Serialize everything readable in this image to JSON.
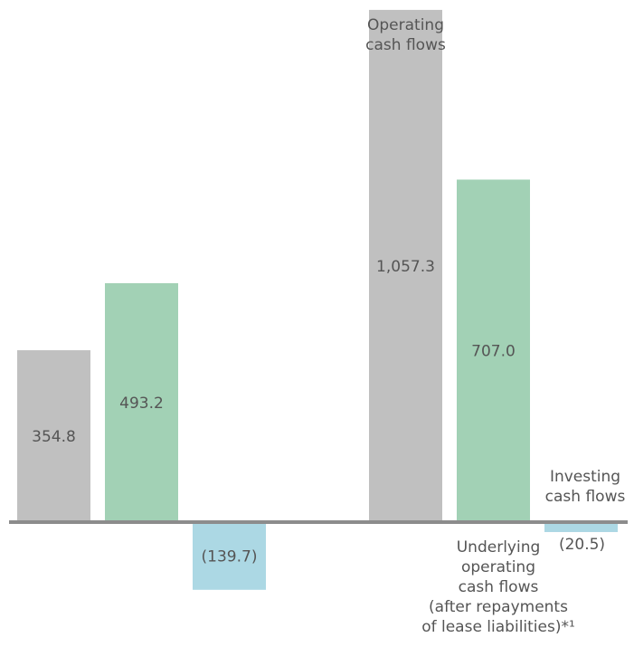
{
  "chart_data": {
    "type": "bar",
    "title": "",
    "xlabel": "",
    "ylabel": "",
    "ylim": [
      -150,
      1100
    ],
    "grid": false,
    "legend": "none",
    "groups": [
      {
        "bars": [
          {
            "series": "operating",
            "value": 354.8,
            "label": "354.8"
          },
          {
            "series": "underlying",
            "value": 493.2,
            "label": "493.2"
          },
          {
            "series": "investing",
            "value": -139.7,
            "label": "(139.7)"
          }
        ]
      },
      {
        "bars": [
          {
            "series": "operating",
            "value": 1057.3,
            "label": "1,057.3"
          },
          {
            "series": "underlying",
            "value": 707.0,
            "label": "707.0"
          },
          {
            "series": "investing",
            "value": -20.5,
            "label": "(20.5)"
          }
        ]
      }
    ],
    "annotations": [
      {
        "series": "operating",
        "lines": [
          "Operating",
          "cash flows"
        ]
      },
      {
        "series": "investing",
        "lines": [
          "Investing",
          "cash flows"
        ]
      },
      {
        "series": "underlying",
        "lines": [
          "Underlying",
          "operating",
          "cash flows",
          "(after repayments",
          "of lease liabilities)*¹"
        ]
      }
    ],
    "colors": {
      "operating": "#c0c0c0",
      "underlying": "#a2d1b5",
      "investing": "#acd8e4",
      "baseline": "#8c8c8c",
      "text": "#555555"
    }
  }
}
